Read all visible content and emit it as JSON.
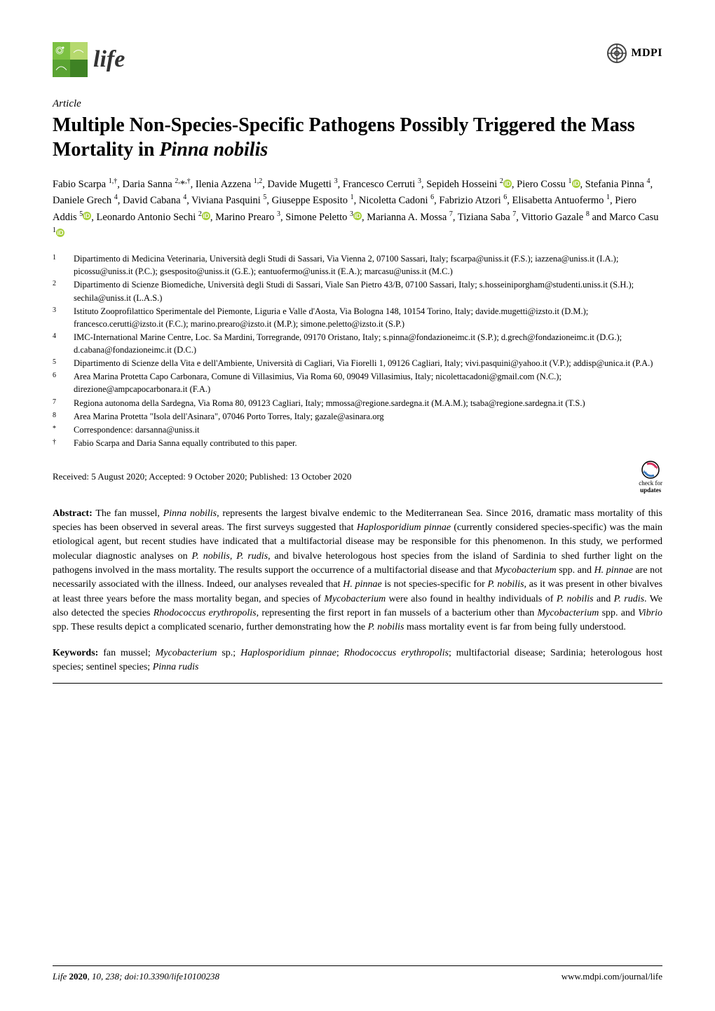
{
  "header": {
    "journal_name": "life",
    "publisher": "MDPI",
    "logo_colors": {
      "c1": "#7cc142",
      "c2": "#5aa332",
      "c3": "#3e8224",
      "c4": "#b6d96e"
    },
    "mdpi_colors": {
      "outer": "#444444",
      "text": "#1a1a1a"
    }
  },
  "article": {
    "type": "Article",
    "title_html": "Multiple Non-Species-Specific Pathogens Possibly Triggered the Mass Mortality in <em>Pinna nobilis</em>",
    "authors_html": "Fabio Scarpa <sup>1,†</sup>, Daria Sanna <sup>2,</sup>*<sup>,†</sup>, Ilenia Azzena <sup>1,2</sup>, Davide Mugetti <sup>3</sup>, Francesco Cerruti <sup>3</sup>, Sepideh Hosseini <sup>2</sup><span class=\"orcid\" data-name=\"orcid-icon\" data-interactable=\"false\"><svg viewBox=\"0 0 12 12\"><circle cx=\"6\" cy=\"6\" r=\"6\" fill=\"#a6ce39\"/><text x=\"6\" y=\"9\" text-anchor=\"middle\" font-size=\"9\" fill=\"#fff\" font-family=\"Arial\" font-weight=\"bold\">iD</text></svg></span>, Piero Cossu <sup>1</sup><span class=\"orcid\" data-name=\"orcid-icon\" data-interactable=\"false\"><svg viewBox=\"0 0 12 12\"><circle cx=\"6\" cy=\"6\" r=\"6\" fill=\"#a6ce39\"/><text x=\"6\" y=\"9\" text-anchor=\"middle\" font-size=\"9\" fill=\"#fff\" font-family=\"Arial\" font-weight=\"bold\">iD</text></svg></span>, Stefania Pinna <sup>4</sup>, Daniele Grech <sup>4</sup>, David Cabana <sup>4</sup>, Viviana Pasquini <sup>5</sup>, Giuseppe Esposito <sup>1</sup>, Nicoletta Cadoni <sup>6</sup>, Fabrizio Atzori <sup>6</sup>, Elisabetta Antuofermo <sup>1</sup>, Piero Addis <sup>5</sup><span class=\"orcid\" data-name=\"orcid-icon\" data-interactable=\"false\"><svg viewBox=\"0 0 12 12\"><circle cx=\"6\" cy=\"6\" r=\"6\" fill=\"#a6ce39\"/><text x=\"6\" y=\"9\" text-anchor=\"middle\" font-size=\"9\" fill=\"#fff\" font-family=\"Arial\" font-weight=\"bold\">iD</text></svg></span>, Leonardo Antonio Sechi <sup>2</sup><span class=\"orcid\" data-name=\"orcid-icon\" data-interactable=\"false\"><svg viewBox=\"0 0 12 12\"><circle cx=\"6\" cy=\"6\" r=\"6\" fill=\"#a6ce39\"/><text x=\"6\" y=\"9\" text-anchor=\"middle\" font-size=\"9\" fill=\"#fff\" font-family=\"Arial\" font-weight=\"bold\">iD</text></svg></span>, Marino Prearo <sup>3</sup>, Simone Peletto <sup>3</sup><span class=\"orcid\" data-name=\"orcid-icon\" data-interactable=\"false\"><svg viewBox=\"0 0 12 12\"><circle cx=\"6\" cy=\"6\" r=\"6\" fill=\"#a6ce39\"/><text x=\"6\" y=\"9\" text-anchor=\"middle\" font-size=\"9\" fill=\"#fff\" font-family=\"Arial\" font-weight=\"bold\">iD</text></svg></span>, Marianna A. Mossa <sup>7</sup>, Tiziana Saba <sup>7</sup>, Vittorio Gazale <sup>8</sup> and Marco Casu <sup>1</sup><span class=\"orcid\" data-name=\"orcid-icon\" data-interactable=\"false\"><svg viewBox=\"0 0 12 12\"><circle cx=\"6\" cy=\"6\" r=\"6\" fill=\"#a6ce39\"/><text x=\"6\" y=\"9\" text-anchor=\"middle\" font-size=\"9\" fill=\"#fff\" font-family=\"Arial\" font-weight=\"bold\">iD</text></svg></span>"
  },
  "affiliations": [
    {
      "num": "1",
      "text": "Dipartimento di Medicina Veterinaria, Università degli Studi di Sassari, Via Vienna 2, 07100 Sassari, Italy; fscarpa@uniss.it (F.S.); iazzena@uniss.it (I.A.); picossu@uniss.it (P.C.); gsesposito@uniss.it (G.E.); eantuofermo@uniss.it (E.A.); marcasu@uniss.it (M.C.)"
    },
    {
      "num": "2",
      "text": "Dipartimento di Scienze Biomediche, Università degli Studi di Sassari, Viale San Pietro 43/B, 07100 Sassari, Italy; s.hosseiniporgham@studenti.uniss.it (S.H.); sechila@uniss.it (L.A.S.)"
    },
    {
      "num": "3",
      "text": "Istituto Zooprofilattico Sperimentale del Piemonte, Liguria e Valle d'Aosta, Via Bologna 148, 10154 Torino, Italy; davide.mugetti@izsto.it (D.M.); francesco.cerutti@izsto.it (F.C.); marino.prearo@izsto.it (M.P.); simone.peletto@izsto.it (S.P.)"
    },
    {
      "num": "4",
      "text": "IMC-International Marine Centre, Loc. Sa Mardini, Torregrande, 09170 Oristano, Italy; s.pinna@fondazioneimc.it (S.P.); d.grech@fondazioneimc.it (D.G.); d.cabana@fondazioneimc.it (D.C.)"
    },
    {
      "num": "5",
      "text": "Dipartimento di Scienze della Vita e dell'Ambiente, Università di Cagliari, Via Fiorelli 1, 09126 Cagliari, Italy; vivi.pasquini@yahoo.it (V.P.); addisp@unica.it (P.A.)"
    },
    {
      "num": "6",
      "text": "Area Marina Protetta Capo Carbonara, Comune di Villasimius, Via Roma 60, 09049 Villasimius, Italy; nicolettacadoni@gmail.com (N.C.); direzione@ampcapocarbonara.it (F.A.)"
    },
    {
      "num": "7",
      "text": "Regiona autonoma della Sardegna, Via Roma 80, 09123 Cagliari, Italy; mmossa@regione.sardegna.it (M.A.M.); tsaba@regione.sardegna.it (T.S.)"
    },
    {
      "num": "8",
      "text": "Area Marina Protetta \"Isola dell'Asinara\", 07046 Porto Torres, Italy; gazale@asinara.org"
    },
    {
      "num": "*",
      "text": "Correspondence: darsanna@uniss.it"
    },
    {
      "num": "†",
      "text": "Fabio Scarpa and Daria Sanna equally contributed to this paper."
    }
  ],
  "dates": {
    "received": "Received: 5 August 2020; Accepted: 9 October 2020; Published: 13 October 2020",
    "check_label1": "check for",
    "check_label2": "updates"
  },
  "abstract": {
    "label": "Abstract:",
    "text_html": "The fan mussel, <em>Pinna nobilis</em>, represents the largest bivalve endemic to the Mediterranean Sea. Since 2016, dramatic mass mortality of this species has been observed in several areas. The first surveys suggested that <em>Haplosporidium pinnae</em> (currently considered species-specific) was the main etiological agent, but recent studies have indicated that a multifactorial disease may be responsible for this phenomenon. In this study, we performed molecular diagnostic analyses on <em>P. nobilis</em>, <em>P. rudis</em>, and bivalve heterologous host species from the island of Sardinia to shed further light on the pathogens involved in the mass mortality. The results support the occurrence of a multifactorial disease and that <em>Mycobacterium</em> spp. and <em>H. pinnae</em> are not necessarily associated with the illness. Indeed, our analyses revealed that <em>H. pinnae</em> is not species-specific for <em>P. nobilis</em>, as it was present in other bivalves at least three years before the mass mortality began, and species of <em>Mycobacterium</em> were also found in healthy individuals of <em>P. nobilis</em> and <em>P. rudis</em>. We also detected the species <em>Rhodococcus erythropolis</em>, representing the first report in fan mussels of a bacterium other than <em>Mycobacterium</em> spp. and <em>Vibrio</em> spp. These results depict a complicated scenario, further demonstrating how the <em>P. nobilis</em> mass mortality event is far from being fully understood."
  },
  "keywords": {
    "label": "Keywords:",
    "text_html": "fan mussel; <em>Mycobacterium</em> sp.; <em>Haplosporidium pinnae</em>; <em>Rhodococcus erythropolis</em>; multifactorial disease; Sardinia; heterologous host species; sentinel species; <em>Pinna rudis</em>"
  },
  "footer": {
    "ref_html": "<span class=\"journal-ref\"><em>Life</em> <span class=\"bold\">2020</span>, <em>10</em>, 238; doi:10.3390/life10100238</span>",
    "url": "www.mdpi.com/journal/life"
  }
}
